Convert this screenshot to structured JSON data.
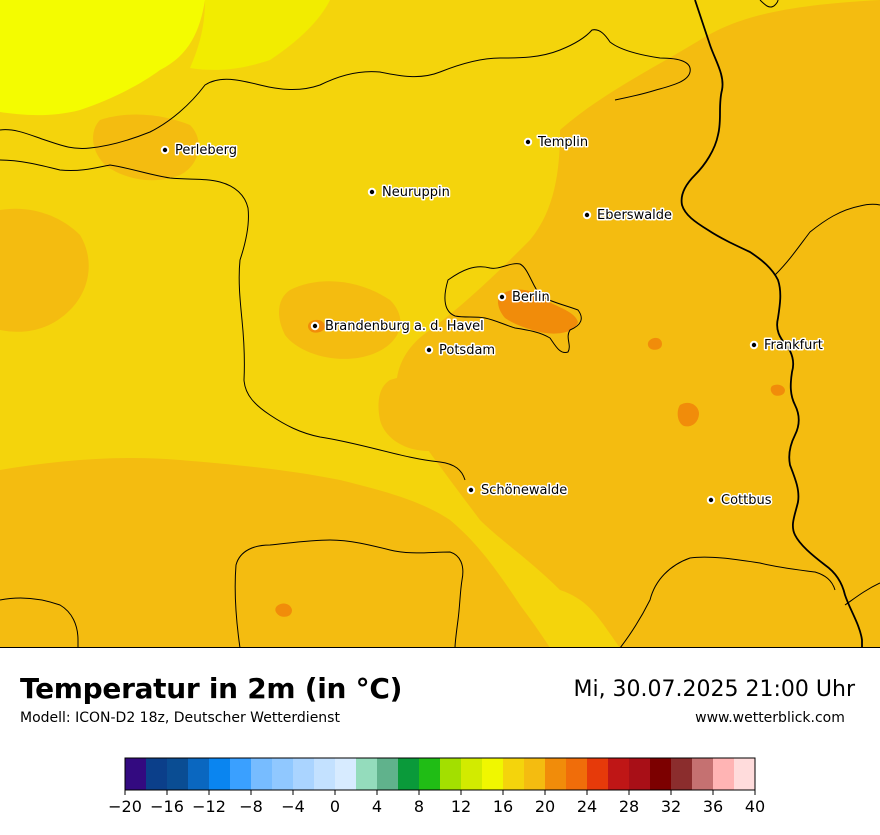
{
  "map": {
    "colors": {
      "base": "#f4d40c",
      "warm": "#f4bc10",
      "hot": "#f18c0a",
      "cool": "#f2ec00",
      "coolest": "#f4fc00"
    },
    "cities": [
      {
        "name": "Perleberg"
      },
      {
        "name": "Templin"
      },
      {
        "name": "Neuruppin"
      },
      {
        "name": "Eberswalde"
      },
      {
        "name": "Berlin"
      },
      {
        "name": "Brandenburg a. d. Havel"
      },
      {
        "name": "Potsdam"
      },
      {
        "name": "Frankfurt"
      },
      {
        "name": "Schönewalde"
      },
      {
        "name": "Cottbus"
      }
    ]
  },
  "header": {
    "title": "Temperatur in 2m (in °C)",
    "subtitle": "Modell: ICON-D2 18z, Deutscher Wetterdienst",
    "datetime": "Mi, 30.07.2025 21:00 Uhr",
    "website": "www.wetterblick.com"
  },
  "legend": {
    "colors": [
      "#330a80",
      "#0b3f8a",
      "#0a4d93",
      "#0a67c0",
      "#0a85f0",
      "#3aa0ff",
      "#77bcff",
      "#90c8ff",
      "#aad4ff",
      "#c3e1ff",
      "#d7ebff",
      "#94dcbc",
      "#60b28c",
      "#0a9a3a",
      "#20bd15",
      "#a3df00",
      "#d2eb00",
      "#f0f700",
      "#f4d40c",
      "#f4bc10",
      "#f18c0a",
      "#f06d0a",
      "#e63a0a",
      "#bf1616",
      "#a80f17",
      "#7c0000",
      "#8b2d2d",
      "#c57171",
      "#ffb4b4",
      "#ffdcdc"
    ],
    "ticks": [
      "−20",
      "−16",
      "−12",
      "−8",
      "−4",
      "0",
      "4",
      "8",
      "12",
      "16",
      "20",
      "24",
      "28",
      "32",
      "36",
      "40"
    ]
  }
}
